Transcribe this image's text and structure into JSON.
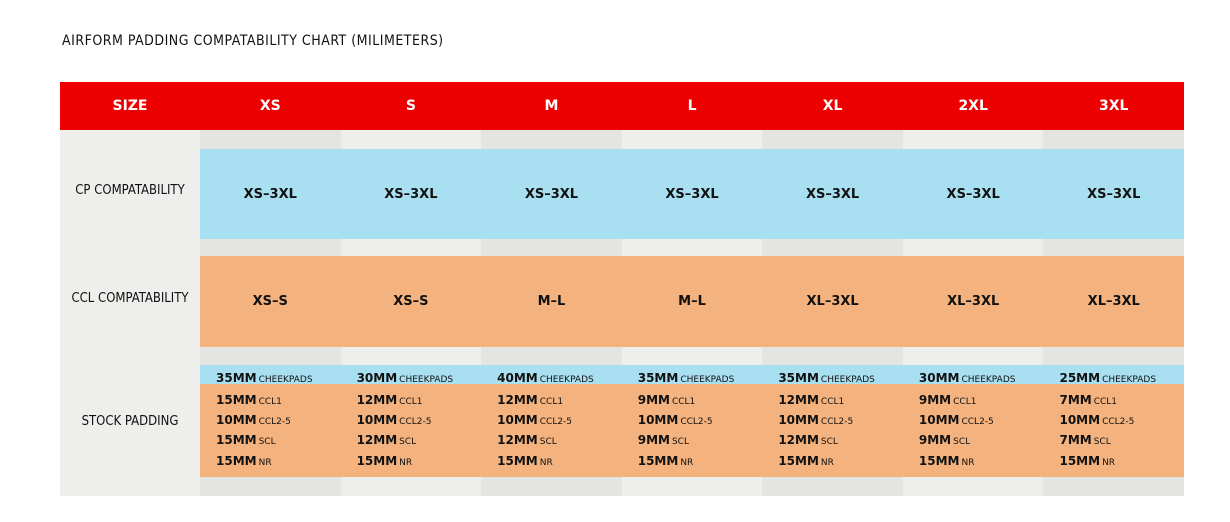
{
  "title": "AIRFORM PADDING COMPATABILITY CHART (MILIMETERS)",
  "header": {
    "label": "SIZE",
    "sizes": [
      "XS",
      "S",
      "M",
      "L",
      "XL",
      "2XL",
      "3XL"
    ]
  },
  "rows": {
    "cp_label": "CP COMPATABILITY",
    "cp": [
      "XS–3XL",
      "XS–3XL",
      "XS–3XL",
      "XS–3XL",
      "XS–3XL",
      "XS–3XL",
      "XS–3XL"
    ],
    "ccl_label": "CCL COMPATABILITY",
    "ccl": [
      "XS–S",
      "XS–S",
      "M–L",
      "M–L",
      "XL–3XL",
      "XL–3XL",
      "XL–3XL"
    ],
    "stock_label": "STOCK PADDING"
  },
  "stock": {
    "cheekpads": [
      "35MM",
      "30MM",
      "40MM",
      "35MM",
      "35MM",
      "30MM",
      "25MM"
    ],
    "cheekpads_name": "CHEEKPADS",
    "ccl1": [
      "15MM",
      "12MM",
      "12MM",
      "9MM",
      "12MM",
      "9MM",
      "7MM"
    ],
    "ccl1_name": "CCL1",
    "ccl25": [
      "10MM",
      "10MM",
      "10MM",
      "10MM",
      "10MM",
      "10MM",
      "10MM"
    ],
    "ccl25_name": "CCL2-5",
    "scl": [
      "15MM",
      "12MM",
      "12MM",
      "9MM",
      "12MM",
      "9MM",
      "7MM"
    ],
    "scl_name": "SCL",
    "nr": [
      "15MM",
      "15MM",
      "15MM",
      "15MM",
      "15MM",
      "15MM",
      "15MM"
    ],
    "nr_name": "NR"
  },
  "colors": {
    "header": "#ee0000",
    "blue": "#a8dff1",
    "orange": "#f4b37e"
  }
}
